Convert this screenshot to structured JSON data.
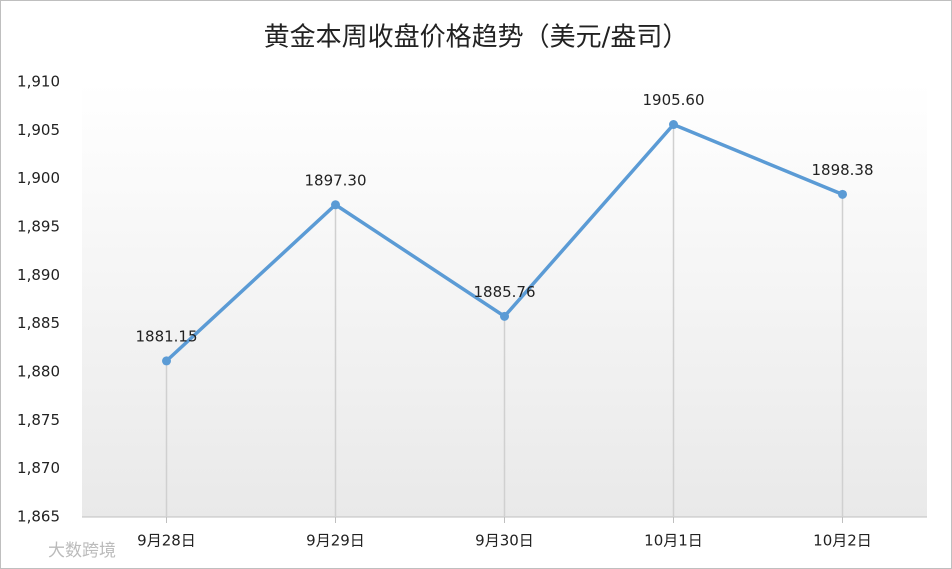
{
  "chart_data": {
    "type": "line",
    "title": "黄金本周收盘价格趋势（美元/盎司）",
    "categories": [
      "9月28日",
      "9月29日",
      "9月30日",
      "10月1日",
      "10月2日"
    ],
    "values": [
      1881.15,
      1897.3,
      1885.76,
      1905.6,
      1898.38
    ],
    "value_labels": [
      "1881.15",
      "1897.30",
      "1885.76",
      "1905.60",
      "1898.38"
    ],
    "color": "#5b9bd5",
    "ylim": [
      1865,
      1910
    ],
    "yticks": [
      {
        "value": 1865,
        "label": "1,865"
      },
      {
        "value": 1870,
        "label": "1,870"
      },
      {
        "value": 1875,
        "label": "1,875"
      },
      {
        "value": 1880,
        "label": "1,880"
      },
      {
        "value": 1885,
        "label": "1,885"
      },
      {
        "value": 1890,
        "label": "1,890"
      },
      {
        "value": 1895,
        "label": "1,895"
      },
      {
        "value": 1900,
        "label": "1,900"
      },
      {
        "value": 1905,
        "label": "1,905"
      },
      {
        "value": 1910,
        "label": "1,910"
      }
    ],
    "drop_lines": true,
    "watermark": "大数跨境"
  }
}
